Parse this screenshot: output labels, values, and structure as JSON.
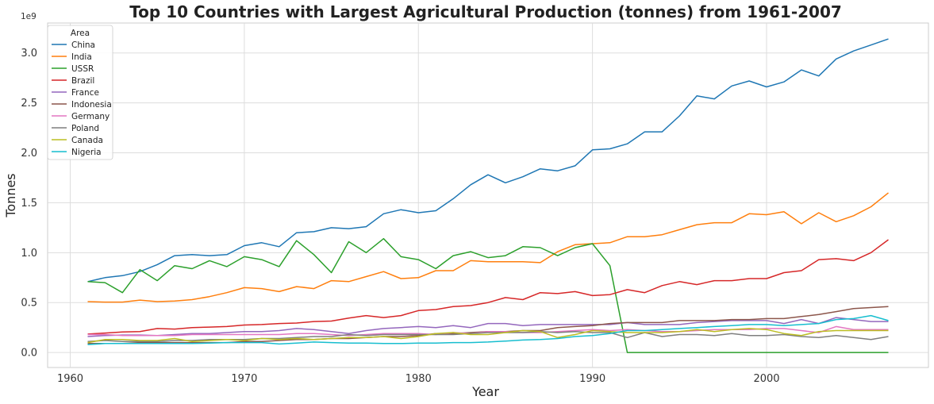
{
  "chart_data": {
    "type": "line",
    "title": "Top 10 Countries with Largest Agricultural Production (tonnes) from 1961-2007",
    "xlabel": "Year",
    "ylabel": "Tonnes",
    "y_offset_label": "1e9",
    "xlim": [
      1961,
      2007
    ],
    "ylim": [
      -0.15,
      3.3
    ],
    "x_ticks": [
      1960,
      1970,
      1980,
      1990,
      2000
    ],
    "y_ticks": [
      "0.0",
      "0.5",
      "1.0",
      "1.5",
      "2.0",
      "2.5",
      "3.0"
    ],
    "grid": true,
    "legend_title": "Area",
    "legend_position": "top-left",
    "x": [
      1961,
      1962,
      1963,
      1964,
      1965,
      1966,
      1967,
      1968,
      1969,
      1970,
      1971,
      1972,
      1973,
      1974,
      1975,
      1976,
      1977,
      1978,
      1979,
      1980,
      1981,
      1982,
      1983,
      1984,
      1985,
      1986,
      1987,
      1988,
      1989,
      1990,
      1991,
      1992,
      1993,
      1994,
      1995,
      1996,
      1997,
      1998,
      1999,
      2000,
      2001,
      2002,
      2003,
      2004,
      2005,
      2006,
      2007
    ],
    "series": [
      {
        "name": "China",
        "color": "#1f77b4",
        "values": [
          0.71,
          0.75,
          0.77,
          0.81,
          0.88,
          0.97,
          0.98,
          0.97,
          0.98,
          1.07,
          1.1,
          1.06,
          1.2,
          1.21,
          1.25,
          1.24,
          1.26,
          1.39,
          1.43,
          1.4,
          1.42,
          1.54,
          1.68,
          1.78,
          1.7,
          1.76,
          1.84,
          1.82,
          1.87,
          2.03,
          2.04,
          2.09,
          2.21,
          2.21,
          2.37,
          2.57,
          2.54,
          2.67,
          2.72,
          2.66,
          2.71,
          2.83,
          2.77,
          2.94,
          3.02,
          3.08,
          3.14
        ]
      },
      {
        "name": "India",
        "color": "#ff7f0e",
        "values": [
          0.51,
          0.505,
          0.505,
          0.525,
          0.51,
          0.515,
          0.53,
          0.56,
          0.6,
          0.65,
          0.64,
          0.61,
          0.66,
          0.64,
          0.72,
          0.71,
          0.76,
          0.81,
          0.74,
          0.75,
          0.82,
          0.82,
          0.92,
          0.91,
          0.91,
          0.91,
          0.9,
          1.01,
          1.08,
          1.09,
          1.1,
          1.16,
          1.16,
          1.18,
          1.23,
          1.28,
          1.3,
          1.3,
          1.39,
          1.38,
          1.41,
          1.29,
          1.4,
          1.31,
          1.37,
          1.46,
          1.6
        ]
      },
      {
        "name": "USSR",
        "color": "#2ca02c",
        "values": [
          0.71,
          0.7,
          0.6,
          0.83,
          0.72,
          0.87,
          0.84,
          0.92,
          0.86,
          0.96,
          0.93,
          0.86,
          1.12,
          0.98,
          0.8,
          1.11,
          1.0,
          1.14,
          0.96,
          0.93,
          0.84,
          0.97,
          1.01,
          0.95,
          0.97,
          1.06,
          1.05,
          0.97,
          1.05,
          1.09,
          0.87,
          0.0,
          0.0,
          0.0,
          0.0,
          0.0,
          0.0,
          0.0,
          0.0,
          0.0,
          0.0,
          0.0,
          0.0,
          0.0,
          0.0,
          0.0,
          0.0
        ]
      },
      {
        "name": "Brazil",
        "color": "#d62728",
        "values": [
          0.185,
          0.195,
          0.205,
          0.21,
          0.24,
          0.235,
          0.25,
          0.255,
          0.26,
          0.275,
          0.28,
          0.29,
          0.295,
          0.31,
          0.315,
          0.345,
          0.37,
          0.35,
          0.37,
          0.42,
          0.43,
          0.46,
          0.47,
          0.5,
          0.55,
          0.53,
          0.6,
          0.59,
          0.61,
          0.57,
          0.58,
          0.63,
          0.6,
          0.67,
          0.71,
          0.68,
          0.72,
          0.72,
          0.74,
          0.74,
          0.8,
          0.82,
          0.93,
          0.94,
          0.92,
          1.0,
          1.13
        ]
      },
      {
        "name": "France",
        "color": "#9467bd",
        "values": [
          0.16,
          0.17,
          0.175,
          0.175,
          0.17,
          0.18,
          0.19,
          0.19,
          0.2,
          0.21,
          0.21,
          0.22,
          0.24,
          0.23,
          0.21,
          0.19,
          0.22,
          0.24,
          0.25,
          0.26,
          0.25,
          0.27,
          0.25,
          0.29,
          0.29,
          0.27,
          0.28,
          0.28,
          0.28,
          0.28,
          0.28,
          0.3,
          0.28,
          0.28,
          0.28,
          0.3,
          0.31,
          0.32,
          0.32,
          0.32,
          0.29,
          0.33,
          0.29,
          0.35,
          0.33,
          0.31,
          0.31
        ]
      },
      {
        "name": "Indonesia",
        "color": "#8c564b",
        "values": [
          0.09,
          0.09,
          0.09,
          0.1,
          0.1,
          0.1,
          0.1,
          0.1,
          0.1,
          0.11,
          0.11,
          0.12,
          0.13,
          0.13,
          0.14,
          0.14,
          0.15,
          0.16,
          0.16,
          0.17,
          0.19,
          0.19,
          0.2,
          0.21,
          0.21,
          0.22,
          0.22,
          0.25,
          0.26,
          0.27,
          0.29,
          0.3,
          0.3,
          0.3,
          0.32,
          0.32,
          0.32,
          0.33,
          0.33,
          0.34,
          0.34,
          0.36,
          0.38,
          0.41,
          0.44,
          0.45,
          0.46
        ]
      },
      {
        "name": "Germany",
        "color": "#e377c2",
        "values": [
          0.18,
          0.18,
          0.17,
          0.17,
          0.17,
          0.17,
          0.18,
          0.18,
          0.18,
          0.18,
          0.18,
          0.18,
          0.19,
          0.19,
          0.18,
          0.17,
          0.18,
          0.19,
          0.19,
          0.19,
          0.18,
          0.2,
          0.19,
          0.21,
          0.21,
          0.2,
          0.2,
          0.21,
          0.22,
          0.23,
          0.22,
          0.23,
          0.22,
          0.21,
          0.21,
          0.22,
          0.23,
          0.23,
          0.23,
          0.24,
          0.24,
          0.22,
          0.2,
          0.26,
          0.23,
          0.23,
          0.23
        ]
      },
      {
        "name": "Poland",
        "color": "#7f7f7f",
        "values": [
          0.11,
          0.12,
          0.11,
          0.11,
          0.11,
          0.12,
          0.12,
          0.13,
          0.13,
          0.13,
          0.14,
          0.14,
          0.15,
          0.16,
          0.16,
          0.18,
          0.17,
          0.18,
          0.18,
          0.18,
          0.18,
          0.18,
          0.19,
          0.2,
          0.2,
          0.2,
          0.21,
          0.2,
          0.21,
          0.2,
          0.2,
          0.15,
          0.2,
          0.16,
          0.18,
          0.18,
          0.17,
          0.19,
          0.17,
          0.17,
          0.18,
          0.16,
          0.15,
          0.17,
          0.15,
          0.13,
          0.16
        ]
      },
      {
        "name": "Canada",
        "color": "#bcbd22",
        "values": [
          0.1,
          0.13,
          0.13,
          0.12,
          0.12,
          0.14,
          0.11,
          0.12,
          0.13,
          0.12,
          0.14,
          0.13,
          0.14,
          0.13,
          0.14,
          0.15,
          0.15,
          0.16,
          0.14,
          0.16,
          0.19,
          0.2,
          0.18,
          0.18,
          0.2,
          0.22,
          0.21,
          0.15,
          0.18,
          0.22,
          0.21,
          0.2,
          0.2,
          0.2,
          0.21,
          0.23,
          0.21,
          0.23,
          0.24,
          0.23,
          0.19,
          0.17,
          0.21,
          0.22,
          0.22,
          0.22,
          0.22
        ]
      },
      {
        "name": "Nigeria",
        "color": "#17becf",
        "values": [
          0.08,
          0.09,
          0.09,
          0.09,
          0.09,
          0.09,
          0.09,
          0.095,
          0.1,
          0.1,
          0.1,
          0.085,
          0.095,
          0.105,
          0.1,
          0.095,
          0.095,
          0.09,
          0.09,
          0.095,
          0.095,
          0.1,
          0.1,
          0.105,
          0.115,
          0.125,
          0.13,
          0.14,
          0.16,
          0.17,
          0.19,
          0.22,
          0.22,
          0.23,
          0.24,
          0.25,
          0.26,
          0.27,
          0.28,
          0.28,
          0.27,
          0.28,
          0.29,
          0.33,
          0.34,
          0.37,
          0.32
        ]
      }
    ]
  }
}
